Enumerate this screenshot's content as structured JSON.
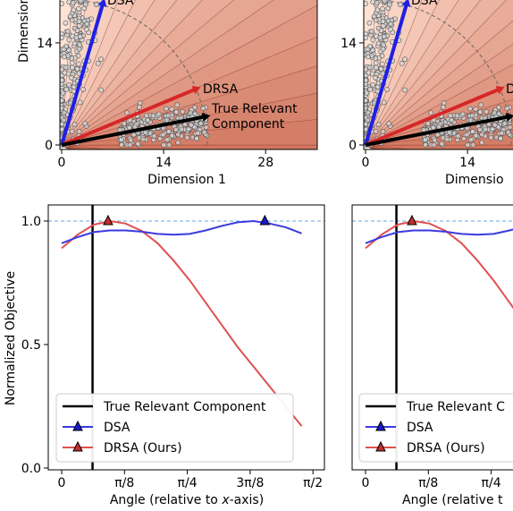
{
  "chart_data": [
    {
      "panel": "top-left",
      "type": "scatter",
      "xlabel": "Dimension 1",
      "ylabel": "Dimension",
      "x_ticks": [
        "0",
        "14",
        "28"
      ],
      "y_ticks": [
        "0",
        "14"
      ],
      "xlim": [
        -1.5,
        35
      ],
      "ylim": [
        -1,
        25
      ],
      "background": "radial stripes, light to dark red with angle",
      "vectors": [
        {
          "label": "DSA",
          "x": 5.7,
          "y": 19.5,
          "color": "#1f1fe6"
        },
        {
          "label": "DRSA",
          "x": 18.5,
          "y": 7.7,
          "color": "#d62728"
        },
        {
          "label": "True Relevant\nComponent",
          "x": 19.8,
          "y": 3.9,
          "color": "#000000"
        }
      ],
      "arc_radius": 20
    },
    {
      "panel": "top-right",
      "type": "scatter",
      "xlabel": "Dimensio",
      "ylabel": "",
      "x_ticks": [
        "0",
        "14"
      ],
      "y_ticks": [
        "0",
        "14"
      ],
      "labels_visible": [
        "DSA",
        "D"
      ]
    },
    {
      "panel": "bottom-left",
      "type": "line",
      "xlabel": "Angle (relative to x-axis)",
      "ylabel": "Normalized Objective",
      "x_ticks": [
        "0",
        "π/8",
        "π/4",
        "3π/8",
        "π/2"
      ],
      "y_ticks": [
        "0.0",
        "0.5",
        "1.0"
      ],
      "xlim": [
        -0.08,
        1.62
      ],
      "ylim": [
        0,
        1.05
      ],
      "true_component_angle": 0.193,
      "series": [
        {
          "name": "DSA",
          "color": "#3a3ae0",
          "x": [
            0.0,
            0.1,
            0.2,
            0.3,
            0.4,
            0.5,
            0.6,
            0.7,
            0.8,
            0.9,
            1.0,
            1.1,
            1.2,
            1.3,
            1.4,
            1.5
          ],
          "y": [
            0.91,
            0.935,
            0.955,
            0.962,
            0.962,
            0.957,
            0.948,
            0.945,
            0.948,
            0.962,
            0.98,
            0.995,
            1.0,
            0.99,
            0.975,
            0.95
          ],
          "max_at": [
            1.27,
            1.0
          ]
        },
        {
          "name": "DRSA (Ours)",
          "color": "#e05050",
          "x": [
            0.0,
            0.1,
            0.2,
            0.3,
            0.4,
            0.5,
            0.6,
            0.7,
            0.8,
            0.9,
            1.0,
            1.1,
            1.2,
            1.3,
            1.4,
            1.5
          ],
          "y": [
            0.89,
            0.945,
            0.985,
            1.0,
            0.99,
            0.96,
            0.91,
            0.84,
            0.76,
            0.67,
            0.58,
            0.49,
            0.41,
            0.33,
            0.25,
            0.17
          ],
          "max_at": [
            0.29,
            1.0
          ]
        }
      ],
      "legend": [
        "True Relevant Component",
        "DSA",
        "DRSA (Ours)"
      ],
      "legend_location": "lower-left"
    },
    {
      "panel": "bottom-right",
      "type": "line",
      "xlabel": "Angle (relative t",
      "x_ticks": [
        "0",
        "π/8",
        "π/4"
      ],
      "legend": [
        "True Relevant C",
        "DSA",
        "DRSA (Ours)"
      ]
    }
  ]
}
